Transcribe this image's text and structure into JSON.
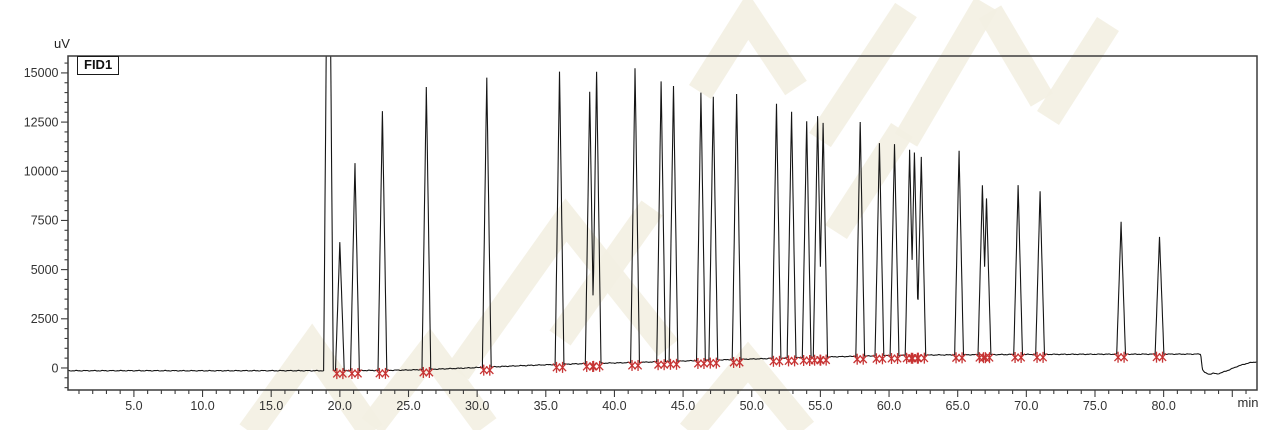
{
  "labels": {
    "y_unit": "uV",
    "x_unit": "min",
    "detector": "FID1"
  },
  "colors": {
    "background": "#ffffff",
    "trace": "#161616",
    "frame": "#3c3c3c",
    "tick_text": "#333333",
    "integration_mark": "#c73434",
    "watermark": "#f3f0e2"
  },
  "chart_data": {
    "type": "line",
    "detector_label": "FID1",
    "xlabel": "min",
    "ylabel": "uV",
    "x_axis": {
      "range": [
        0.2,
        86.8
      ],
      "major_tick_step": 5,
      "minor_tick_step": 1,
      "major_tick_labels": [
        "5.0",
        "10.0",
        "15.0",
        "20.0",
        "25.0",
        "30.0",
        "35.0",
        "40.0",
        "45.0",
        "50.0",
        "55.0",
        "60.0",
        "65.0",
        "70.0",
        "75.0",
        "80.0"
      ]
    },
    "y_axis": {
      "range": [
        -1120,
        15860
      ],
      "major_tick_step": 2500,
      "minor_tick_step": 500,
      "major_ticks": [
        0,
        2500,
        5000,
        7500,
        10000,
        12500,
        15000
      ],
      "major_tick_labels": [
        "0",
        "2500",
        "5000",
        "7500",
        "10000",
        "12500",
        "15000"
      ]
    },
    "grid": "off",
    "peak_halfwidth_min": 0.32,
    "baseline_points": [
      [
        0.2,
        -140
      ],
      [
        5,
        -138
      ],
      [
        10,
        -142
      ],
      [
        15,
        -138
      ],
      [
        18.4,
        -140
      ],
      [
        19.8,
        -135
      ],
      [
        21,
        -130
      ],
      [
        23,
        -125
      ],
      [
        25,
        -105
      ],
      [
        27,
        -60
      ],
      [
        29,
        -10
      ],
      [
        31,
        50
      ],
      [
        33,
        110
      ],
      [
        35,
        160
      ],
      [
        37,
        205
      ],
      [
        39,
        240
      ],
      [
        41,
        270
      ],
      [
        43,
        310
      ],
      [
        45,
        355
      ],
      [
        47,
        395
      ],
      [
        49,
        435
      ],
      [
        51,
        475
      ],
      [
        53,
        515
      ],
      [
        55,
        550
      ],
      [
        57,
        585
      ],
      [
        59,
        615
      ],
      [
        61,
        640
      ],
      [
        63,
        658
      ],
      [
        65,
        668
      ],
      [
        67,
        676
      ],
      [
        69,
        684
      ],
      [
        71,
        690
      ],
      [
        73,
        694
      ],
      [
        75,
        697
      ],
      [
        78,
        700
      ],
      [
        80,
        702
      ],
      [
        82.7,
        704
      ],
      [
        82.82,
        -60
      ],
      [
        83.0,
        -240
      ],
      [
        83.3,
        -320
      ],
      [
        83.6,
        -270
      ],
      [
        83.9,
        -305
      ],
      [
        84.3,
        -220
      ],
      [
        84.8,
        -90
      ],
      [
        85.4,
        90
      ],
      [
        86.0,
        220
      ],
      [
        86.4,
        280
      ],
      [
        86.8,
        315
      ]
    ],
    "peaks": [
      {
        "t": 19.17,
        "uV": 30000,
        "w": 0.35,
        "marked": false,
        "clipped": true
      },
      {
        "t": 20.0,
        "uV": 6400,
        "marked": true
      },
      {
        "t": 21.1,
        "uV": 10420,
        "marked": true
      },
      {
        "t": 23.1,
        "uV": 13070,
        "marked": true
      },
      {
        "t": 26.3,
        "uV": 14300,
        "marked": true
      },
      {
        "t": 30.7,
        "uV": 14750,
        "marked": true
      },
      {
        "t": 36.0,
        "uV": 15080,
        "marked": true
      },
      {
        "t": 38.2,
        "uV": 14050,
        "marked": true
      },
      {
        "t": 38.7,
        "uV": 15080,
        "marked": true
      },
      {
        "t": 41.5,
        "uV": 15230,
        "marked": true
      },
      {
        "t": 43.4,
        "uV": 14560,
        "marked": true
      },
      {
        "t": 44.3,
        "uV": 14330,
        "marked": true
      },
      {
        "t": 46.3,
        "uV": 14000,
        "marked": true
      },
      {
        "t": 47.2,
        "uV": 13790,
        "marked": true
      },
      {
        "t": 48.9,
        "uV": 13930,
        "marked": true
      },
      {
        "t": 51.8,
        "uV": 13430,
        "marked": true
      },
      {
        "t": 52.9,
        "uV": 13030,
        "marked": true
      },
      {
        "t": 54.0,
        "uV": 12530,
        "marked": true
      },
      {
        "t": 54.8,
        "uV": 12810,
        "marked": true
      },
      {
        "t": 55.2,
        "uV": 12450,
        "marked": true
      },
      {
        "t": 57.9,
        "uV": 12500,
        "marked": true
      },
      {
        "t": 59.3,
        "uV": 11430,
        "marked": true
      },
      {
        "t": 60.4,
        "uV": 11360,
        "marked": true
      },
      {
        "t": 61.5,
        "uV": 11090,
        "marked": true
      },
      {
        "t": 61.85,
        "uV": 10960,
        "marked": true
      },
      {
        "t": 62.35,
        "uV": 10720,
        "marked": true
      },
      {
        "t": 65.1,
        "uV": 11050,
        "marked": true
      },
      {
        "t": 66.8,
        "uV": 9280,
        "marked": true
      },
      {
        "t": 67.1,
        "uV": 8620,
        "marked": true
      },
      {
        "t": 69.4,
        "uV": 9290,
        "marked": true
      },
      {
        "t": 71.0,
        "uV": 8990,
        "marked": true
      },
      {
        "t": 76.9,
        "uV": 7440,
        "marked": true
      },
      {
        "t": 79.7,
        "uV": 6670,
        "marked": true
      }
    ]
  },
  "watermark_strokes": [
    [
      [
        250,
        432
      ],
      [
        312,
        346
      ],
      [
        372,
        432
      ]
    ],
    [
      [
        372,
        426
      ],
      [
        430,
        350
      ],
      [
        486,
        426
      ]
    ],
    [
      [
        458,
        372
      ],
      [
        566,
        220
      ],
      [
        668,
        348
      ]
    ],
    [
      [
        560,
        338
      ],
      [
        652,
        208
      ]
    ],
    [
      [
        700,
        92
      ],
      [
        748,
        16
      ],
      [
        796,
        88
      ]
    ],
    [
      [
        820,
        140
      ],
      [
        906,
        10
      ]
    ],
    [
      [
        836,
        232
      ],
      [
        902,
        130
      ]
    ],
    [
      [
        906,
        140
      ],
      [
        986,
        4
      ]
    ],
    [
      [
        990,
        12
      ],
      [
        1042,
        100
      ]
    ],
    [
      [
        690,
        432
      ],
      [
        748,
        362
      ],
      [
        804,
        430
      ]
    ],
    [
      [
        1048,
        118
      ],
      [
        1108,
        24
      ]
    ]
  ]
}
